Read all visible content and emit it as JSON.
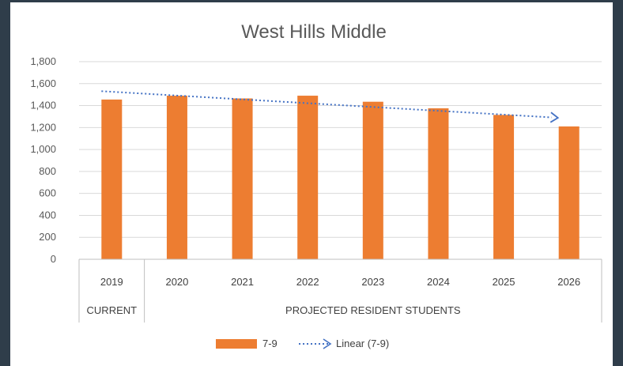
{
  "chart_data": {
    "type": "bar",
    "title": "West Hills Middle",
    "categories": [
      "2019",
      "2020",
      "2021",
      "2022",
      "2023",
      "2024",
      "2025",
      "2026"
    ],
    "category_groups": [
      {
        "label": "CURRENT",
        "categories": [
          "2019"
        ]
      },
      {
        "label": "PROJECTED RESIDENT STUDENTS",
        "categories": [
          "2020",
          "2021",
          "2022",
          "2023",
          "2024",
          "2025",
          "2026"
        ]
      }
    ],
    "series": [
      {
        "name": "7-9",
        "type": "bar",
        "color": "#ed7d31",
        "values": [
          1455,
          1490,
          1465,
          1490,
          1435,
          1375,
          1315,
          1210
        ]
      }
    ],
    "trendline": {
      "name": "Linear (7-9)",
      "kind": "linear",
      "color": "#4472c4",
      "style": "dotted",
      "arrow": "end"
    },
    "ylim": [
      0,
      1800
    ],
    "yticks": [
      0,
      200,
      400,
      600,
      800,
      1000,
      1200,
      1400,
      1600,
      1800
    ],
    "ytick_labels": [
      "0",
      "200",
      "400",
      "600",
      "800",
      "1,000",
      "1,200",
      "1,400",
      "1,600",
      "1,800"
    ],
    "grid": true,
    "legend": "bottom",
    "legend_entries": [
      "7-9",
      "Linear (7-9)"
    ]
  }
}
